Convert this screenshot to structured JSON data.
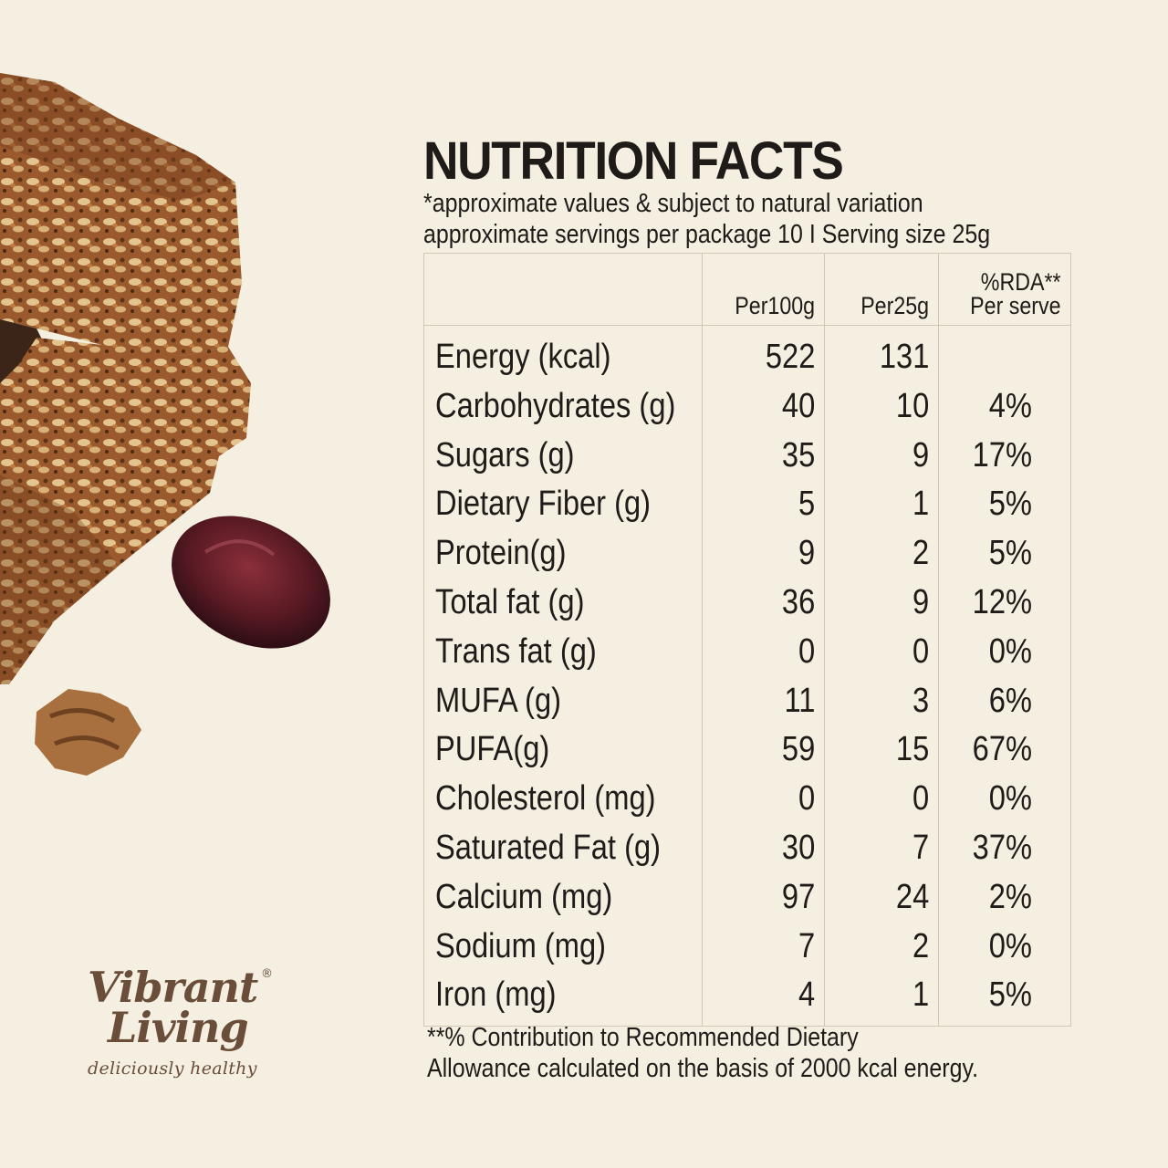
{
  "panel": {
    "title": "NUTRITION FACTS",
    "subtitle_line1": "*approximate values & subject to natural variation",
    "subtitle_line2": "approximate servings per package 10 I Serving size 25g"
  },
  "table": {
    "headers": {
      "nutrient": "",
      "per100g": "Per100g",
      "per25g": "Per25g",
      "rda_line1": "%RDA**",
      "rda_line2": "Per serve"
    },
    "rows": [
      {
        "nutrient": "Energy (kcal)",
        "per100g": "522",
        "per25g": "131",
        "rda": ""
      },
      {
        "nutrient": "Carbohydrates (g)",
        "per100g": "40",
        "per25g": "10",
        "rda": "4%"
      },
      {
        "nutrient": "Sugars (g)",
        "per100g": "35",
        "per25g": "9",
        "rda": "17%"
      },
      {
        "nutrient": "Dietary Fiber (g)",
        "per100g": "5",
        "per25g": "1",
        "rda": "5%"
      },
      {
        "nutrient": "Protein(g)",
        "per100g": "9",
        "per25g": "2",
        "rda": "5%"
      },
      {
        "nutrient": "Total fat (g)",
        "per100g": "36",
        "per25g": "9",
        "rda": "12%"
      },
      {
        "nutrient": "Trans fat (g)",
        "per100g": "0",
        "per25g": "0",
        "rda": "0%"
      },
      {
        "nutrient": "MUFA (g)",
        "per100g": "11",
        "per25g": "3",
        "rda": "6%"
      },
      {
        "nutrient": "PUFA(g)",
        "per100g": "59",
        "per25g": "15",
        "rda": "67%"
      },
      {
        "nutrient": "Cholesterol (mg)",
        "per100g": "0",
        "per25g": "0",
        "rda": "0%"
      },
      {
        "nutrient": "Saturated Fat (g)",
        "per100g": "30",
        "per25g": "7",
        "rda": "37%"
      },
      {
        "nutrient": "Calcium (mg)",
        "per100g": "97",
        "per25g": "24",
        "rda": "2%"
      },
      {
        "nutrient": "Sodium (mg)",
        "per100g": "7",
        "per25g": "2",
        "rda": "0%"
      },
      {
        "nutrient": "Iron (mg)",
        "per100g": "4",
        "per25g": "1",
        "rda": "5%"
      }
    ]
  },
  "footnote": {
    "line1": "**% Contribution to Recommended Dietary",
    "line2": "Allowance calculated on the basis of 2000 kcal energy."
  },
  "brand": {
    "name_line1": "Vibrant",
    "name_line2": "Living",
    "registered_mark": "®",
    "tagline": "deliciously healthy",
    "color": "#6a4e3a"
  },
  "illustration": {
    "icon": "granola-bar-with-date-and-walnut-icon"
  },
  "colors": {
    "background": "#f4efe1",
    "text": "#1e1b18",
    "table_border": "#cfc6b3"
  }
}
